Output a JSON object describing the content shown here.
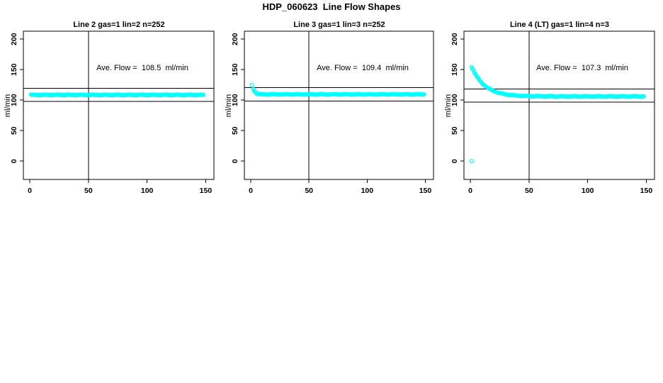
{
  "page": {
    "title": "HDP_060623  Line Flow Shapes"
  },
  "chart_data": [
    {
      "type": "scatter",
      "title": "Line 2 gas=1 lin=2 n=252",
      "ylabel": "ml/min",
      "ave_flow_label": "Ave. Flow =  108.5  ml/min",
      "ave_flow_value": 108.5,
      "marker_color": "#00FFFF",
      "x_ticks": [
        0,
        50,
        100,
        150
      ],
      "y_ticks": [
        0,
        50,
        100,
        150,
        200
      ],
      "xlim": [
        -5.5,
        157
      ],
      "ylim": [
        -30,
        213
      ],
      "vline_x": 50,
      "ref_lines": [
        119.4,
        97.7
      ],
      "grid": false,
      "series": {
        "x_start": 1,
        "x_step": 3,
        "y": [
          108.5,
          108.5,
          108.5,
          108.5,
          108.5,
          108.5,
          108.5,
          108.5,
          108.5,
          108.5,
          108.5,
          108.5,
          108.5,
          108.5,
          108.5,
          108.5,
          108.5,
          108.5,
          108.5,
          108.5,
          108.5,
          108.5,
          108.5,
          108.5,
          108.5,
          108.5,
          108.5,
          108.5,
          108.5,
          108.5,
          108.5,
          108.5,
          108.5,
          108.5,
          108.5,
          108.5,
          108.5,
          108.5,
          108.5,
          108.5,
          108.5,
          108.5,
          108.5,
          108.5,
          108.5,
          108.5,
          108.5,
          108.5,
          108.5,
          108.5
        ]
      },
      "outliers": []
    },
    {
      "type": "scatter",
      "title": "Line 3 gas=1 lin=3 n=252",
      "ylabel": "ml/min",
      "ave_flow_label": "Ave. Flow =  109.4  ml/min",
      "ave_flow_value": 109.4,
      "marker_color": "#00FFFF",
      "x_ticks": [
        0,
        50,
        100,
        150
      ],
      "y_ticks": [
        0,
        50,
        100,
        150,
        200
      ],
      "xlim": [
        -5.5,
        157
      ],
      "ylim": [
        -30,
        213
      ],
      "vline_x": 50,
      "ref_lines": [
        120.3,
        98.5
      ],
      "grid": false,
      "series": {
        "x_start": 2,
        "x_step": 3,
        "y": [
          118,
          110.8,
          109.6,
          109.4,
          109.4,
          109.4,
          109.4,
          109.4,
          109.4,
          109.4,
          109.4,
          109.4,
          109.4,
          109.4,
          109.4,
          109.4,
          109.4,
          109.4,
          109.4,
          109.4,
          109.4,
          109.4,
          109.4,
          109.4,
          109.4,
          109.4,
          109.4,
          109.4,
          109.4,
          109.4,
          109.4,
          109.4,
          109.4,
          109.4,
          109.4,
          109.4,
          109.4,
          109.4,
          109.4,
          109.4,
          109.4,
          109.4,
          109.4,
          109.4,
          109.4,
          109.4,
          109.4,
          109.4,
          109.4,
          109.4
        ]
      },
      "outliers": [
        [
          1,
          124.5
        ]
      ]
    },
    {
      "type": "scatter",
      "title": "Line 4 (LT) gas=1 lin=4 n=3",
      "ylabel": "ml/min",
      "ave_flow_label": "Ave. Flow =  107.3  ml/min",
      "ave_flow_value": 107.3,
      "marker_color": "#00FFFF",
      "x_ticks": [
        0,
        50,
        100,
        150
      ],
      "y_ticks": [
        0,
        50,
        100,
        150,
        200
      ],
      "xlim": [
        -5.5,
        157
      ],
      "ylim": [
        -30,
        213
      ],
      "vline_x": 50,
      "ref_lines": [
        118.0,
        96.6
      ],
      "grid": false,
      "series": {
        "x_start": 1,
        "x_step": 3,
        "y": [
          155,
          143.3,
          134.4,
          127.6,
          122.5,
          118.5,
          115.6,
          113.3,
          111.5,
          110.2,
          109.2,
          108.4,
          107.9,
          107.4,
          107.1,
          106.8,
          106.6,
          106.5,
          106.4,
          106.3,
          106.2,
          106.2,
          106.1,
          106.1,
          106,
          106,
          106,
          106,
          106,
          106,
          106,
          106,
          106,
          106,
          106,
          106,
          106,
          106,
          106,
          106,
          106,
          106,
          106,
          106,
          106,
          106,
          106,
          106,
          106,
          106
        ]
      },
      "outliers": [
        [
          1,
          0
        ]
      ]
    }
  ]
}
